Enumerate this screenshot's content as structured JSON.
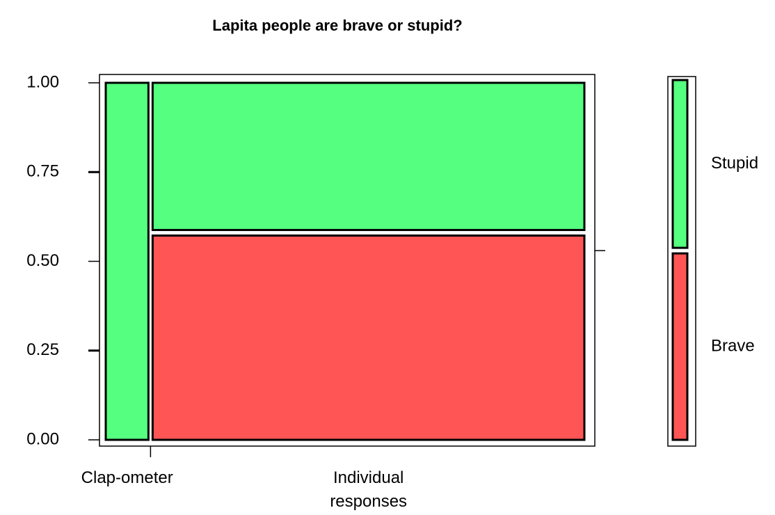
{
  "chart_data": {
    "type": "mosaic",
    "title": "Lapita people are brave or stupid?",
    "categories": [
      "Clap-ometer",
      "Individual responses"
    ],
    "widths": [
      0.09,
      0.91
    ],
    "series": [
      {
        "name": "Brave",
        "color": "#ff5555",
        "values": [
          0,
          0.58
        ]
      },
      {
        "name": "Stupid",
        "color": "#55ff7f",
        "values": [
          1,
          0.42
        ]
      }
    ],
    "marginal": [
      0.53,
      0.47
    ],
    "ylim": [
      0,
      1
    ],
    "yticks": [
      {
        "value": 0,
        "label": "0.00"
      },
      {
        "value": 0.25,
        "label": "0.25"
      },
      {
        "value": 0.5,
        "label": "0.50"
      },
      {
        "value": 0.75,
        "label": "0.75"
      },
      {
        "value": 1,
        "label": "1.00"
      }
    ]
  }
}
